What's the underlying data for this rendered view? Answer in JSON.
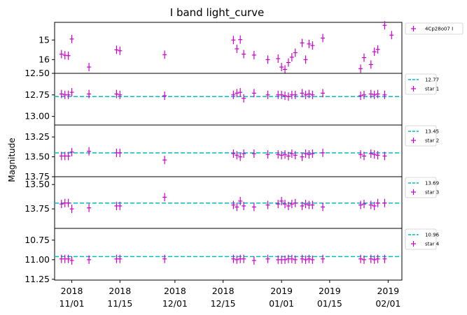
{
  "chart_data": {
    "type": "scatter",
    "title": "I band light_curve",
    "ylabel": "Magnitude",
    "x_date_labels": [
      {
        "date": "2018-11-01",
        "year": "2018",
        "day": "11/01"
      },
      {
        "date": "2018-11-15",
        "year": "2018",
        "day": "11/15"
      },
      {
        "date": "2018-12-01",
        "year": "2018",
        "day": "12/01"
      },
      {
        "date": "2018-12-15",
        "year": "2018",
        "day": "12/15"
      },
      {
        "date": "2019-01-01",
        "year": "2019",
        "day": "01/01"
      },
      {
        "date": "2019-01-15",
        "year": "2019",
        "day": "01/15"
      },
      {
        "date": "2019-02-01",
        "year": "2019",
        "day": "02/01"
      }
    ],
    "xlim": [
      "2018-10-27",
      "2019-02-05"
    ],
    "dates": [
      "2018-10-29",
      "2018-10-30",
      "2018-10-31",
      "2018-11-01",
      "2018-11-06",
      "2018-11-14",
      "2018-11-15",
      "2018-11-28",
      "2018-12-18",
      "2018-12-19",
      "2018-12-20",
      "2018-12-21",
      "2018-12-24",
      "2018-12-28",
      "2018-12-31",
      "2019-01-01",
      "2019-01-02",
      "2019-01-03",
      "2019-01-04",
      "2019-01-05",
      "2019-01-07",
      "2019-01-08",
      "2019-01-09",
      "2019-01-10",
      "2019-01-13",
      "2019-01-24",
      "2019-01-25",
      "2019-01-27",
      "2019-01-28",
      "2019-01-29",
      "2019-01-31"
    ],
    "panels": [
      {
        "name": "4Cp28o07 I",
        "ylim": [
          16.7,
          14.1
        ],
        "yticks": [
          "15",
          "16"
        ],
        "ytick_values": [
          15,
          16
        ],
        "reference": null,
        "values": [
          15.72,
          15.78,
          15.8,
          14.95,
          16.38,
          15.5,
          15.55,
          15.75,
          15.0,
          15.45,
          14.98,
          15.72,
          15.77,
          16.0,
          15.95,
          16.38,
          16.5,
          16.15,
          15.88,
          15.65,
          15.15,
          16.0,
          15.2,
          15.28,
          14.9,
          16.46,
          15.9,
          16.25,
          15.6,
          15.48,
          14.25
        ],
        "extra_points": [
          {
            "date": "2019-02-02",
            "value": 14.75
          }
        ]
      },
      {
        "name": "star 1",
        "ylim": [
          13.1,
          12.5
        ],
        "yticks": [
          "12.50",
          "12.75",
          "13.00"
        ],
        "ytick_values": [
          12.5,
          12.75,
          13.0
        ],
        "reference": {
          "value": 12.77,
          "label": "12.77"
        },
        "values": [
          12.74,
          12.75,
          12.75,
          12.72,
          12.74,
          12.74,
          12.75,
          12.76,
          12.75,
          12.73,
          12.72,
          12.79,
          12.73,
          12.75,
          12.75,
          12.75,
          12.76,
          12.77,
          12.75,
          12.75,
          12.73,
          12.75,
          12.74,
          12.75,
          12.73,
          12.76,
          12.75,
          12.74,
          12.75,
          12.74,
          12.75
        ]
      },
      {
        "name": "star 2",
        "ylim": [
          13.75,
          13.1
        ],
        "yticks": [
          "13.25",
          "13.50",
          "13.75"
        ],
        "ytick_values": [
          13.25,
          13.5,
          13.75
        ],
        "reference": {
          "value": 13.45,
          "label": "13.45"
        },
        "values": [
          13.49,
          13.49,
          13.49,
          13.44,
          13.43,
          13.45,
          13.45,
          13.54,
          13.46,
          13.48,
          13.5,
          13.46,
          13.46,
          13.47,
          13.47,
          13.48,
          13.47,
          13.49,
          13.46,
          13.48,
          13.5,
          13.46,
          13.47,
          13.46,
          13.45,
          13.47,
          13.49,
          13.46,
          13.47,
          13.48,
          13.49
        ]
      },
      {
        "name": "star 3",
        "ylim": [
          13.95,
          13.42
        ],
        "yticks": [
          "13.50",
          "13.75"
        ],
        "ytick_values": [
          13.5,
          13.75
        ],
        "reference": {
          "value": 13.69,
          "label": "13.69"
        },
        "values": [
          13.7,
          13.69,
          13.69,
          13.75,
          13.74,
          13.72,
          13.72,
          13.63,
          13.71,
          13.73,
          13.67,
          13.72,
          13.73,
          13.71,
          13.7,
          13.67,
          13.7,
          13.72,
          13.7,
          13.69,
          13.72,
          13.7,
          13.71,
          13.71,
          13.73,
          13.71,
          13.7,
          13.71,
          13.72,
          13.69,
          13.69
        ]
      },
      {
        "name": "star 4",
        "ylim": [
          11.26,
          10.6
        ],
        "yticks": [
          "10.75",
          "11.00",
          "11.25"
        ],
        "ytick_values": [
          10.75,
          11.0,
          11.25
        ],
        "reference": {
          "value": 10.96,
          "label": "10.96"
        },
        "values": [
          10.99,
          10.99,
          10.99,
          11.01,
          11.0,
          10.99,
          10.99,
          10.99,
          10.99,
          11.0,
          10.99,
          10.99,
          11.01,
          10.99,
          11.0,
          11.0,
          11.0,
          10.99,
          10.99,
          11.0,
          10.99,
          11.0,
          10.99,
          11.0,
          10.99,
          10.99,
          11.0,
          10.99,
          11.0,
          10.99,
          10.99
        ]
      }
    ],
    "colors": {
      "points": "#cc00cc",
      "reference": "#00bfbf"
    }
  }
}
